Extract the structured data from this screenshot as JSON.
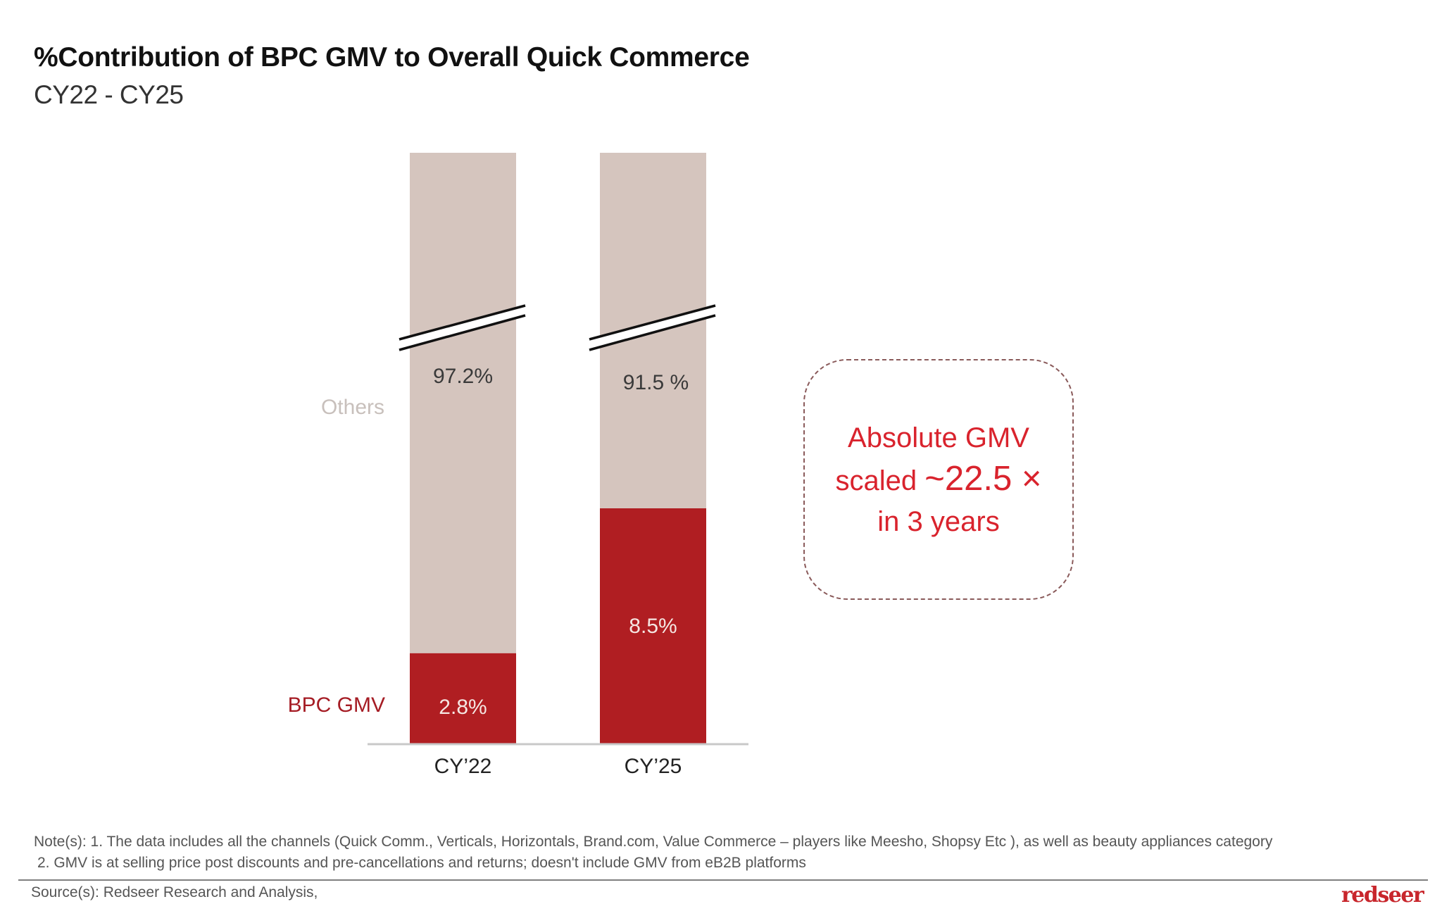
{
  "header": {
    "title": "%Contribution of BPC GMV to Overall Quick Commerce",
    "subtitle": "CY22 - CY25"
  },
  "chart_data": {
    "type": "bar",
    "stacked": true,
    "axis_break": true,
    "categories": [
      "CY’22",
      "CY’25"
    ],
    "series": [
      {
        "name": "BPC GMV",
        "values": [
          2.8,
          8.5
        ],
        "labels": [
          "2.8%",
          "8.5%"
        ],
        "color": "#b01e22",
        "label_color": "#f5e6e2"
      },
      {
        "name": "Others",
        "values": [
          97.2,
          91.5
        ],
        "labels": [
          "97.2%",
          "91.5 %"
        ],
        "color": "#d5c5be",
        "label_color": "#3a3a3a"
      }
    ],
    "legend": [
      {
        "name": "Others",
        "color": "#c8c0bc",
        "placement": "left of bars"
      },
      {
        "name": "BPC GMV",
        "color": "#a51c24",
        "placement": "left of bars"
      }
    ],
    "title": "%Contribution of BPC GMV to Overall Quick Commerce",
    "subtitle": "CY22 - CY25",
    "xlabel": "",
    "ylabel": "",
    "ylim": [
      0,
      100
    ],
    "grid": false
  },
  "annotation": {
    "line1": "Absolute GMV",
    "line2_prefix": "scaled ",
    "line2_emphasis": "~22.5 ×",
    "line3": "in 3 years",
    "color": "#d9232d"
  },
  "footer": {
    "note_line1": "Note(s): 1. The data includes all the channels (Quick Comm., Verticals, Horizontals, Brand.com, Value Commerce – players like Meesho, Shopsy Etc ), as well as beauty appliances category",
    "note_line2": "2. GMV is at selling price post discounts and pre-cancellations and returns; doesn't include GMV from eB2B platforms",
    "source": "Source(s): Redseer Research and Analysis,",
    "logo": "redseer"
  }
}
